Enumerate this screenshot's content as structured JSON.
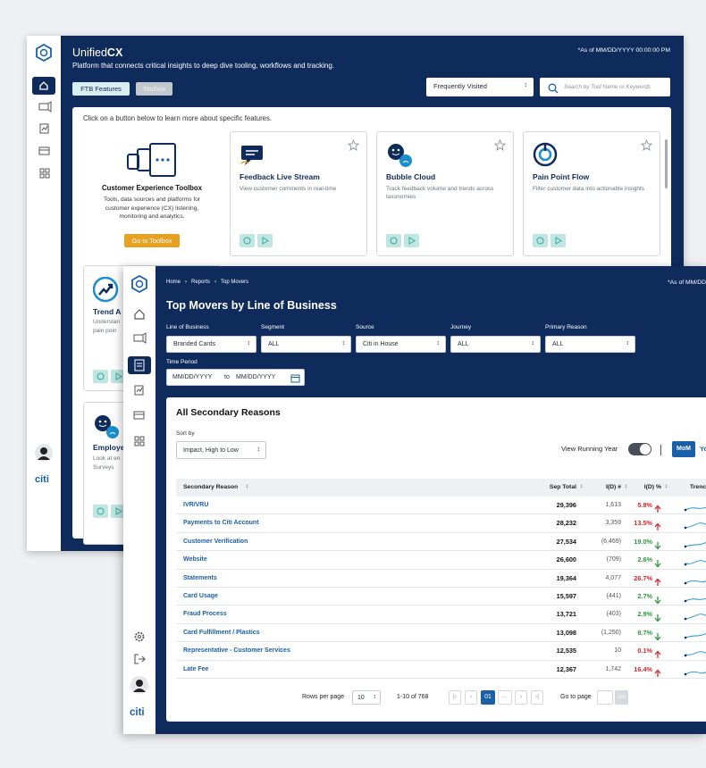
{
  "back": {
    "brand": {
      "name": "Unified",
      "suffix": "CX"
    },
    "tagline": "Platform that connects critical insights to deep dive tooling, workflows and tracking.",
    "as_of": "*As of MM/DD/YYYY 00:00:00 PM",
    "tabs": [
      "FTB Features",
      "Toolbox"
    ],
    "dropdown": "Frequently Visited",
    "search_placeholder": "Search by Tool Name or Keywords",
    "instruction": "Click on a button below to learn more about specific features.",
    "toolbox": {
      "title": "Customer Experience Toolbox",
      "description": "Tools, data sources and platforms for customer experience (CX) listening, monitoring and analytics.",
      "button": "Go to Toolbox"
    },
    "cards": [
      {
        "title": "Feedback Live Stream",
        "description": "View customer comments in real-time"
      },
      {
        "title": "Bubble Cloud",
        "description": "Track feedback volume and trends across taxonomies"
      },
      {
        "title": "Pain Point Flow",
        "description": "Filter customer data into actionable insights"
      }
    ],
    "partial_cards": [
      {
        "title": "Trend A",
        "lines": [
          "Understan",
          "pain poin"
        ]
      },
      {
        "title": "Employe",
        "lines": [
          "Look at en",
          "Surveys"
        ]
      }
    ],
    "logo": "citi"
  },
  "front": {
    "breadcrumb": [
      "Home",
      "Reports",
      "Top Movers"
    ],
    "as_of": "*As of MM/DD/",
    "title": "Top Movers by Line of Business",
    "filters": [
      {
        "label": "Line of Business",
        "value": "Branded Cards"
      },
      {
        "label": "Segment",
        "value": "ALL"
      },
      {
        "label": "Source",
        "value": "Citi in House"
      },
      {
        "label": "Journey",
        "value": "ALL"
      },
      {
        "label": "Primary Reason",
        "value": "ALL"
      }
    ],
    "time_period": {
      "label": "Time Period",
      "from": "MM/DD/YYYY",
      "sep": "to",
      "to": "MM/DD/YYYY"
    },
    "panel_title": "All Secondary Reasons",
    "sort_label": "Sort by",
    "sort_value": "Impact, High to Low",
    "running_year": "View Running Year",
    "toggles": [
      "MoM",
      "Yo"
    ],
    "table": {
      "columns": [
        "Secondary Reason",
        "Sep Total",
        "I(D) #",
        "I(D) %",
        "Trenc"
      ],
      "rows": [
        {
          "reason": "IVR/VRU",
          "total": "29,396",
          "change": "1,613",
          "pct": "5.8%",
          "direction": "up"
        },
        {
          "reason": "Payments to Citi Account",
          "total": "28,232",
          "change": "3,359",
          "pct": "13.5%",
          "direction": "up"
        },
        {
          "reason": "Customer Verification",
          "total": "27,534",
          "change": "(6,469)",
          "pct": "19.0%",
          "direction": "down"
        },
        {
          "reason": "Website",
          "total": "26,600",
          "change": "(709)",
          "pct": "2.6%",
          "direction": "down"
        },
        {
          "reason": "Statements",
          "total": "19,364",
          "change": "4,077",
          "pct": "26.7%",
          "direction": "up"
        },
        {
          "reason": "Card Usage",
          "total": "15,597",
          "change": "(441)",
          "pct": "2.7%",
          "direction": "down"
        },
        {
          "reason": "Fraud Process",
          "total": "13,721",
          "change": "(403)",
          "pct": "2.9%",
          "direction": "down"
        },
        {
          "reason": "Card Fulfillment / Plastics",
          "total": "13,098",
          "change": "(1,250)",
          "pct": "8.7%",
          "direction": "down"
        },
        {
          "reason": "Representative - Customer Services",
          "total": "12,535",
          "change": "10",
          "pct": "0.1%",
          "direction": "up"
        },
        {
          "reason": "Late Fee",
          "total": "12,367",
          "change": "1,742",
          "pct": "16.4%",
          "direction": "up"
        }
      ]
    },
    "pagination": {
      "rows_label": "Rows per page",
      "rows_value": "10",
      "range": "1-10 of 768",
      "page": "01",
      "ellipsis": "...",
      "goto": "Go to page",
      "go": "Go"
    },
    "logo": "citi"
  }
}
